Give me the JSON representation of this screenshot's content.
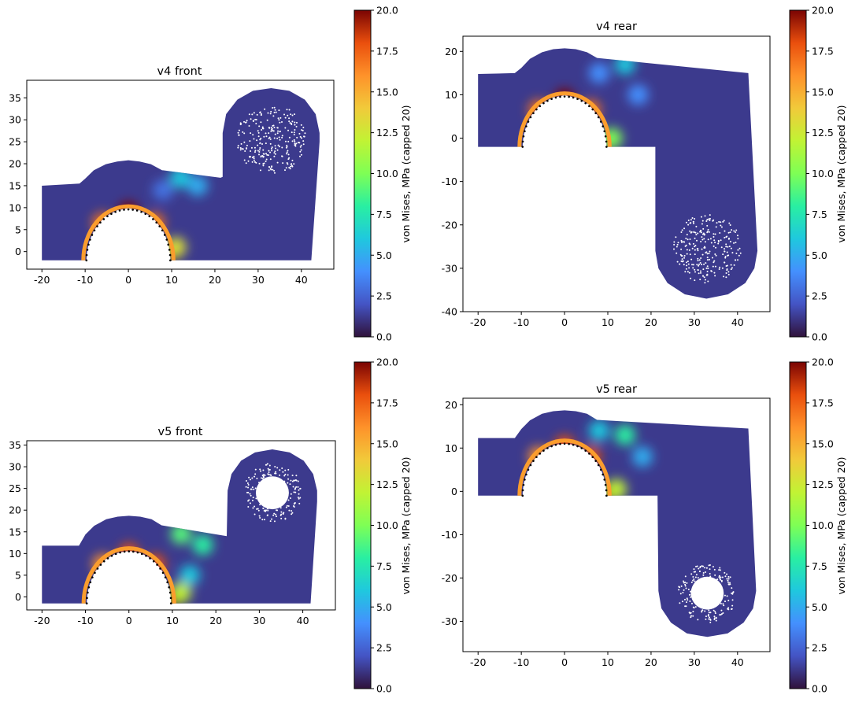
{
  "figure": {
    "colormap": "turbo"
  },
  "chart_data": [
    {
      "type": "heatmap",
      "title": "v4 front",
      "variant": "v4",
      "view": "front",
      "xticks": [
        -20,
        -10,
        0,
        10,
        20,
        30,
        40
      ],
      "yticks": [
        0,
        5,
        10,
        15,
        20,
        25,
        30,
        35
      ],
      "xlim": [
        -23.5,
        47.5
      ],
      "ylim": [
        -4,
        39
      ],
      "outline": [
        [
          -20,
          -2
        ],
        [
          -9.5,
          -2
        ],
        [
          -9.2,
          1
        ],
        [
          -8,
          4.8
        ],
        [
          -5.6,
          7.8
        ],
        [
          -2.6,
          9.4
        ],
        [
          0,
          9.9
        ],
        [
          2.6,
          9.4
        ],
        [
          5.6,
          7.8
        ],
        [
          8,
          4.8
        ],
        [
          9.2,
          1
        ],
        [
          9.5,
          -2
        ],
        [
          42.3,
          -2
        ],
        [
          44.2,
          25
        ],
        [
          44.2,
          27
        ],
        [
          43.3,
          31.3
        ],
        [
          40.8,
          34.6
        ],
        [
          37.2,
          36.6
        ],
        [
          33,
          37.2
        ],
        [
          28.8,
          36.6
        ],
        [
          25.2,
          34.6
        ],
        [
          22.6,
          31.3
        ],
        [
          21.8,
          27
        ],
        [
          21.8,
          17
        ],
        [
          21.3,
          16.8
        ],
        [
          8,
          18.5
        ],
        [
          7.8,
          18.5
        ],
        [
          5.2,
          19.9
        ],
        [
          2.6,
          20.5
        ],
        [
          0,
          20.8
        ],
        [
          -2.6,
          20.5
        ],
        [
          -5.2,
          19.9
        ],
        [
          -8,
          18.5
        ],
        [
          -10,
          16.6
        ],
        [
          -11.3,
          15.5
        ],
        [
          -20,
          15
        ]
      ],
      "hole_center": [
        0,
        -2
      ],
      "hole_radius": 9.7,
      "hole_ry": 11.6,
      "bolt_center": [
        33,
        25.5
      ],
      "bolt_r_inner": 0,
      "bolt_r_outer": 8,
      "hotspots": [
        {
          "x": 0,
          "y": 9,
          "v": 20
        },
        {
          "x": -6,
          "y": 6.5,
          "v": 17
        },
        {
          "x": 6,
          "y": 6.5,
          "v": 17
        },
        {
          "x": 9.8,
          "y": 0,
          "v": 20
        },
        {
          "x": 11,
          "y": 1,
          "v": 13
        },
        {
          "x": 12,
          "y": 16.8,
          "v": 6
        },
        {
          "x": 16,
          "y": 15,
          "v": 5
        },
        {
          "x": 8,
          "y": 14,
          "v": 3
        }
      ],
      "colorbar": {
        "label": "von Mises, MPa (capped 20)",
        "ticks": [
          "0.0",
          "2.5",
          "5.0",
          "7.5",
          "10.0",
          "12.5",
          "15.0",
          "17.5",
          "20.0"
        ],
        "vmin": 0,
        "vmax": 20
      }
    },
    {
      "type": "heatmap",
      "title": "v4 rear",
      "variant": "v4",
      "view": "rear",
      "xticks": [
        -20,
        -10,
        0,
        10,
        20,
        30,
        40
      ],
      "yticks": [
        -40,
        -30,
        -20,
        -10,
        0,
        10,
        20
      ],
      "xlim": [
        -23.5,
        47.5
      ],
      "ylim": [
        -40,
        23.5
      ],
      "outline": [
        [
          -20,
          -2
        ],
        [
          -9.5,
          -2
        ],
        [
          -9.2,
          1
        ],
        [
          -8,
          4.8
        ],
        [
          -5.6,
          7.8
        ],
        [
          -2.6,
          9.4
        ],
        [
          0,
          9.9
        ],
        [
          2.6,
          9.4
        ],
        [
          5.6,
          7.8
        ],
        [
          8,
          4.8
        ],
        [
          9.2,
          1
        ],
        [
          9.5,
          -2
        ],
        [
          21,
          -2
        ],
        [
          21,
          -26
        ],
        [
          21.7,
          -30
        ],
        [
          23.8,
          -33.4
        ],
        [
          27.8,
          -36
        ],
        [
          32.8,
          -37
        ],
        [
          37.8,
          -36
        ],
        [
          41.8,
          -33.4
        ],
        [
          43.9,
          -30
        ],
        [
          44.6,
          -26
        ],
        [
          42.5,
          15
        ],
        [
          7.5,
          18.5
        ],
        [
          5.2,
          19.8
        ],
        [
          2.6,
          20.5
        ],
        [
          0,
          20.7
        ],
        [
          -2.6,
          20.5
        ],
        [
          -5.2,
          19.8
        ],
        [
          -8,
          18.3
        ],
        [
          -10,
          16.2
        ],
        [
          -11.5,
          15
        ],
        [
          -20,
          14.8
        ]
      ],
      "hole_center": [
        0,
        -2
      ],
      "hole_radius": 9.7,
      "hole_ry": 11.6,
      "bolt_center": [
        33,
        -25.5
      ],
      "bolt_r_inner": 0,
      "bolt_r_outer": 8,
      "hotspots": [
        {
          "x": 0,
          "y": 9,
          "v": 20
        },
        {
          "x": -6,
          "y": 6.5,
          "v": 17
        },
        {
          "x": 6,
          "y": 6.5,
          "v": 17
        },
        {
          "x": 9.8,
          "y": -0.5,
          "v": 20
        },
        {
          "x": 11,
          "y": 0,
          "v": 10
        },
        {
          "x": 14,
          "y": 17,
          "v": 6
        },
        {
          "x": 17,
          "y": 10,
          "v": 4
        },
        {
          "x": 8,
          "y": 15,
          "v": 4
        }
      ],
      "colorbar": {
        "label": "von Mises, MPa (capped 20)",
        "ticks": [
          "0.0",
          "2.5",
          "5.0",
          "7.5",
          "10.0",
          "12.5",
          "15.0",
          "17.5",
          "20.0"
        ],
        "vmin": 0,
        "vmax": 20
      }
    },
    {
      "type": "heatmap",
      "title": "v5 front",
      "variant": "v5",
      "view": "front",
      "xticks": [
        -20,
        -10,
        0,
        10,
        20,
        30,
        40
      ],
      "yticks": [
        0,
        5,
        10,
        15,
        20,
        25,
        30,
        35
      ],
      "xlim": [
        -23.5,
        47.5
      ],
      "ylim": [
        -3,
        36
      ],
      "outline": [
        [
          -20,
          -1.5
        ],
        [
          -9.5,
          -1.5
        ],
        [
          -9.2,
          1.8
        ],
        [
          -8,
          5.5
        ],
        [
          -5.6,
          8.5
        ],
        [
          -2.6,
          10.1
        ],
        [
          0,
          10.6
        ],
        [
          2.6,
          10.1
        ],
        [
          5.6,
          8.5
        ],
        [
          8,
          5.5
        ],
        [
          9.2,
          1.8
        ],
        [
          9.5,
          -1.5
        ],
        [
          41.8,
          -1.5
        ],
        [
          43.3,
          22
        ],
        [
          43.3,
          24.5
        ],
        [
          42.4,
          28.3
        ],
        [
          40.2,
          31.4
        ],
        [
          37,
          33.3
        ],
        [
          33,
          34
        ],
        [
          29,
          33.3
        ],
        [
          25.8,
          31.4
        ],
        [
          23.6,
          28.3
        ],
        [
          22.7,
          24.5
        ],
        [
          22.5,
          14
        ],
        [
          7.5,
          16.5
        ],
        [
          5.2,
          17.9
        ],
        [
          2.6,
          18.5
        ],
        [
          0,
          18.7
        ],
        [
          -2.6,
          18.5
        ],
        [
          -5.2,
          17.9
        ],
        [
          -8,
          16.4
        ],
        [
          -10,
          14.4
        ],
        [
          -11.5,
          11.8
        ],
        [
          -20,
          11.8
        ]
      ],
      "hole_center": [
        0,
        -1.5
      ],
      "hole_radius": 9.7,
      "hole_ry": 12,
      "bolt_center": [
        33,
        24
      ],
      "bolt_r_inner": 3.8,
      "bolt_r_outer": 6.8,
      "hotspots": [
        {
          "x": 0,
          "y": 10,
          "v": 18
        },
        {
          "x": -6,
          "y": 7.5,
          "v": 16
        },
        {
          "x": 6,
          "y": 7.5,
          "v": 18
        },
        {
          "x": 9.8,
          "y": -0.5,
          "v": 20
        },
        {
          "x": 12,
          "y": 1,
          "v": 12
        },
        {
          "x": 12,
          "y": 14.5,
          "v": 9
        },
        {
          "x": 17,
          "y": 12,
          "v": 8
        },
        {
          "x": 14,
          "y": 5,
          "v": 6
        }
      ],
      "colorbar": {
        "label": "von Mises, MPa (capped 20)",
        "ticks": [
          "0.0",
          "2.5",
          "5.0",
          "7.5",
          "10.0",
          "12.5",
          "15.0",
          "17.5",
          "20.0"
        ],
        "vmin": 0,
        "vmax": 20
      }
    },
    {
      "type": "heatmap",
      "title": "v5 rear",
      "variant": "v5",
      "view": "rear",
      "xticks": [
        -20,
        -10,
        0,
        10,
        20,
        30,
        40
      ],
      "yticks": [
        -30,
        -20,
        -10,
        0,
        10,
        20
      ],
      "xlim": [
        -23.5,
        47.5
      ],
      "ylim": [
        -37,
        21.5
      ],
      "outline": [
        [
          -20,
          -1
        ],
        [
          -9.5,
          -1
        ],
        [
          -9.2,
          2
        ],
        [
          -8,
          5.8
        ],
        [
          -5.6,
          8.8
        ],
        [
          -2.6,
          10.5
        ],
        [
          0,
          11
        ],
        [
          2.6,
          10.5
        ],
        [
          5.6,
          8.8
        ],
        [
          8,
          5.8
        ],
        [
          9.2,
          2
        ],
        [
          9.5,
          -1
        ],
        [
          21.5,
          -1
        ],
        [
          21.7,
          -23
        ],
        [
          22.4,
          -27
        ],
        [
          24.6,
          -30.3
        ],
        [
          28.3,
          -32.8
        ],
        [
          33,
          -33.6
        ],
        [
          37.7,
          -32.8
        ],
        [
          41.4,
          -30.3
        ],
        [
          43.6,
          -27
        ],
        [
          44.3,
          -23
        ],
        [
          42.5,
          14.5
        ],
        [
          7.5,
          16.5
        ],
        [
          5.2,
          17.9
        ],
        [
          2.6,
          18.5
        ],
        [
          0,
          18.7
        ],
        [
          -2.6,
          18.5
        ],
        [
          -5.2,
          17.9
        ],
        [
          -8,
          16.4
        ],
        [
          -10,
          14.4
        ],
        [
          -11.5,
          12.3
        ],
        [
          -20,
          12.3
        ]
      ],
      "hole_center": [
        0,
        -1
      ],
      "hole_radius": 9.7,
      "hole_ry": 12,
      "bolt_center": [
        33,
        -23.5
      ],
      "bolt_r_inner": 3.8,
      "bolt_r_outer": 6.8,
      "hotspots": [
        {
          "x": 0,
          "y": 10.5,
          "v": 18
        },
        {
          "x": -6,
          "y": 8,
          "v": 16
        },
        {
          "x": 6,
          "y": 8,
          "v": 18
        },
        {
          "x": 9.8,
          "y": -0.5,
          "v": 20
        },
        {
          "x": 12,
          "y": 0.5,
          "v": 12
        },
        {
          "x": 14,
          "y": 13,
          "v": 8
        },
        {
          "x": 18,
          "y": 8,
          "v": 5
        },
        {
          "x": 8,
          "y": 14,
          "v": 6
        }
      ],
      "colorbar": {
        "label": "von Mises, MPa (capped 20)",
        "ticks": [
          "0.0",
          "2.5",
          "5.0",
          "7.5",
          "10.0",
          "12.5",
          "15.0",
          "17.5",
          "20.0"
        ],
        "vmin": 0,
        "vmax": 20
      }
    }
  ]
}
